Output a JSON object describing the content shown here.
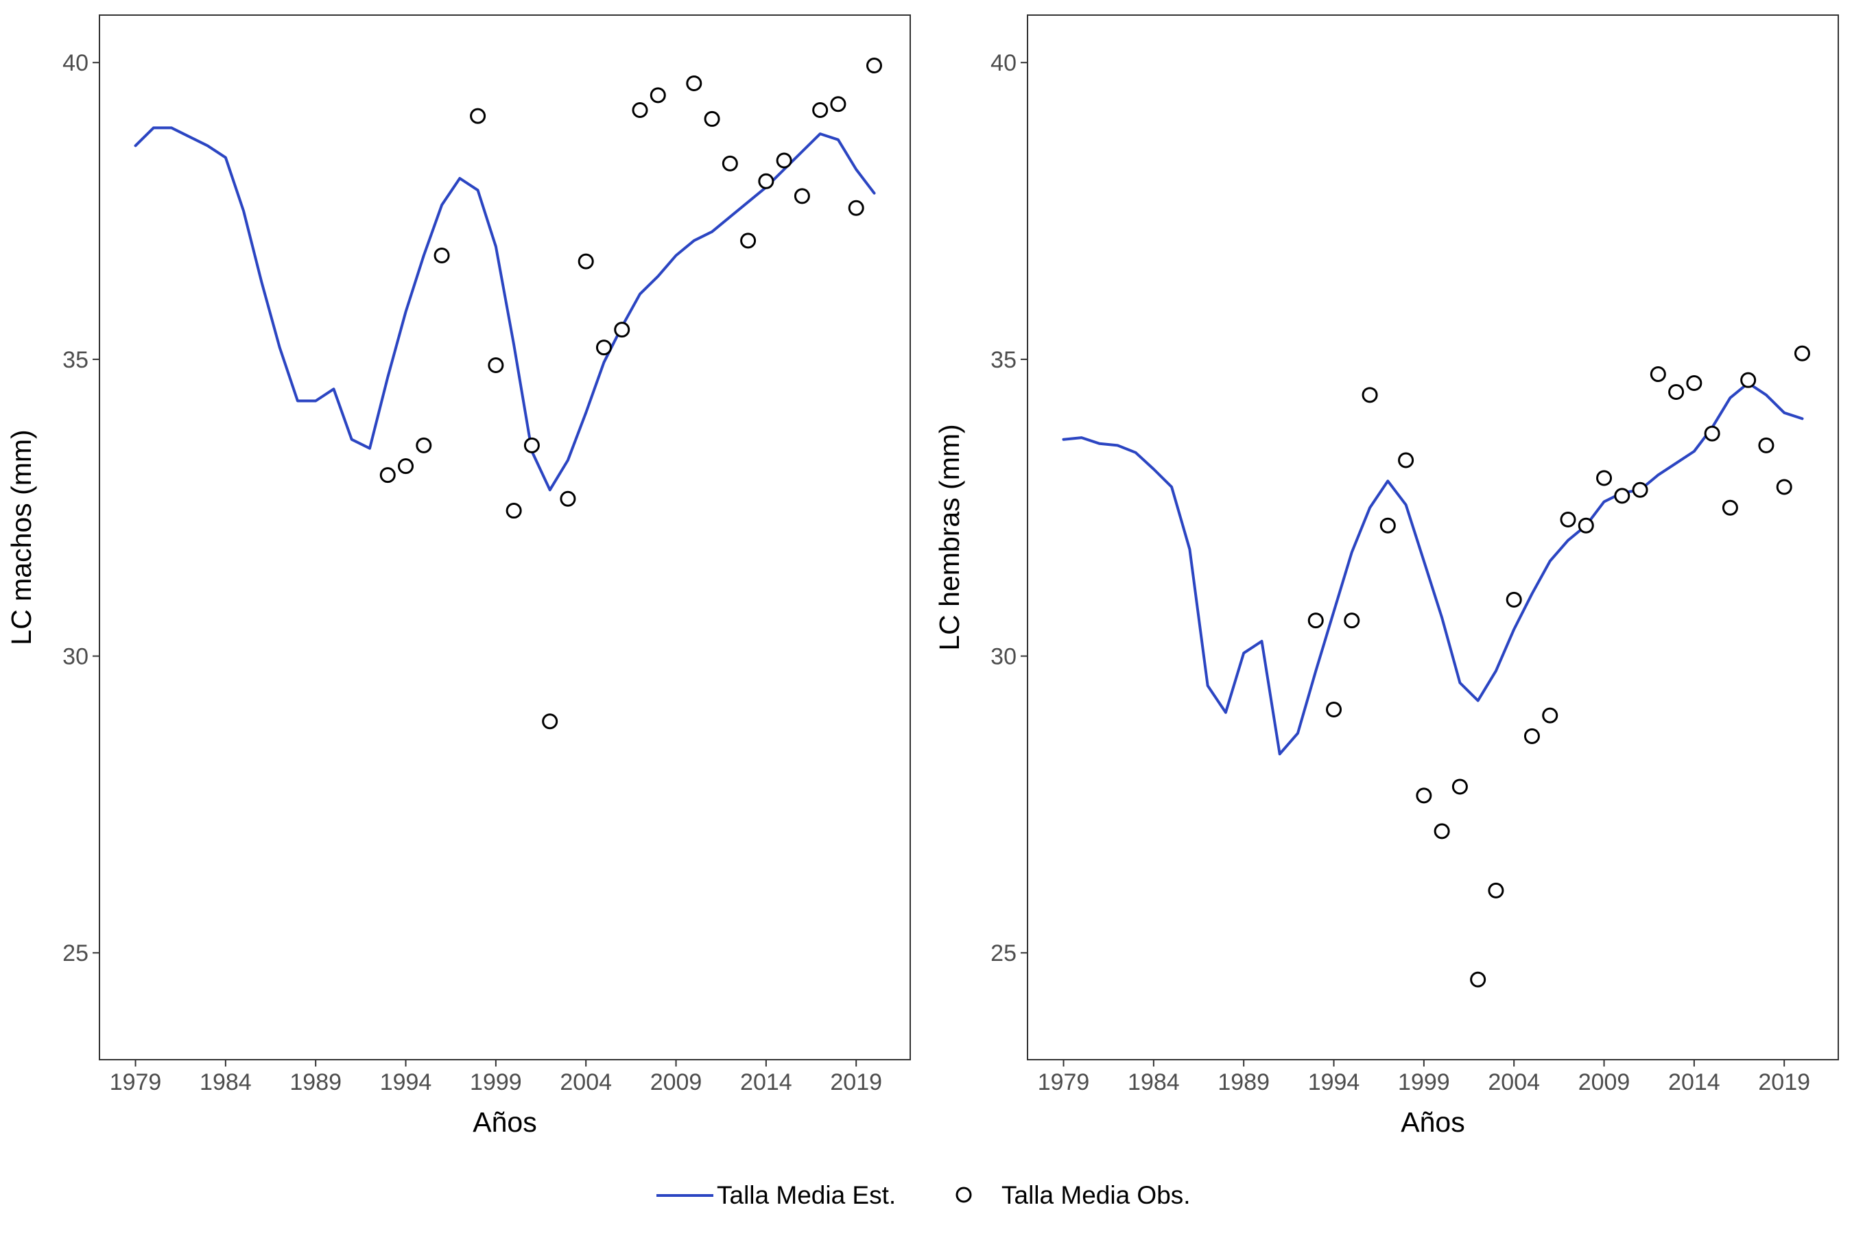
{
  "chart_data": [
    {
      "type": "line",
      "panel": "left",
      "xlabel": "Años",
      "ylabel": "LC machos (mm)",
      "xlim": [
        1977,
        2022
      ],
      "ylim": [
        23.2,
        40.8
      ],
      "xticks": [
        1979,
        1984,
        1989,
        1994,
        1999,
        2004,
        2009,
        2014,
        2019
      ],
      "yticks": [
        25,
        30,
        35,
        40
      ],
      "grid": false,
      "series": [
        {
          "name": "Talla Media Est.",
          "kind": "line",
          "color": "#2B45C2",
          "x": [
            1979,
            1980,
            1981,
            1982,
            1983,
            1984,
            1985,
            1986,
            1987,
            1988,
            1989,
            1990,
            1991,
            1992,
            1993,
            1994,
            1995,
            1996,
            1997,
            1998,
            1999,
            2000,
            2001,
            2002,
            2003,
            2004,
            2005,
            2006,
            2007,
            2008,
            2009,
            2010,
            2011,
            2012,
            2013,
            2014,
            2015,
            2016,
            2017,
            2018,
            2019,
            2020
          ],
          "y": [
            38.6,
            38.9,
            38.9,
            38.75,
            38.6,
            38.4,
            37.5,
            36.3,
            35.2,
            34.3,
            34.3,
            34.5,
            33.65,
            33.5,
            34.7,
            35.8,
            36.75,
            37.6,
            38.05,
            37.85,
            36.9,
            35.25,
            33.45,
            32.8,
            33.3,
            34.1,
            34.95,
            35.55,
            36.1,
            36.4,
            36.75,
            37.0,
            37.15,
            37.4,
            37.65,
            37.9,
            38.2,
            38.5,
            38.8,
            38.7,
            38.2,
            37.8
          ]
        },
        {
          "name": "Talla Media Obs.",
          "kind": "points",
          "color": "#000000",
          "x": [
            1993,
            1994,
            1995,
            1996,
            1998,
            1999,
            2000,
            2001,
            2002,
            2003,
            2004,
            2005,
            2006,
            2007,
            2008,
            2010,
            2011,
            2012,
            2013,
            2014,
            2015,
            2016,
            2017,
            2018,
            2019,
            2020
          ],
          "y": [
            33.05,
            33.2,
            33.55,
            36.75,
            39.1,
            34.9,
            32.45,
            33.55,
            28.9,
            32.65,
            36.65,
            35.2,
            35.5,
            39.2,
            39.45,
            39.65,
            39.05,
            38.3,
            37.0,
            38.0,
            38.35,
            37.75,
            39.2,
            39.3,
            37.55,
            39.95
          ]
        }
      ]
    },
    {
      "type": "line",
      "panel": "right",
      "xlabel": "Años",
      "ylabel": "LC hembras (mm)",
      "xlim": [
        1977,
        2022
      ],
      "ylim": [
        23.2,
        40.8
      ],
      "xticks": [
        1979,
        1984,
        1989,
        1994,
        1999,
        2004,
        2009,
        2014,
        2019
      ],
      "yticks": [
        25,
        30,
        35,
        40
      ],
      "grid": false,
      "series": [
        {
          "name": "Talla Media Est.",
          "kind": "line",
          "color": "#2B45C2",
          "x": [
            1979,
            1980,
            1981,
            1982,
            1983,
            1984,
            1985,
            1986,
            1987,
            1988,
            1989,
            1990,
            1991,
            1992,
            1993,
            1994,
            1995,
            1996,
            1997,
            1998,
            1999,
            2000,
            2001,
            2002,
            2003,
            2004,
            2005,
            2006,
            2007,
            2008,
            2009,
            2010,
            2011,
            2012,
            2013,
            2014,
            2015,
            2016,
            2017,
            2018,
            2019,
            2020
          ],
          "y": [
            33.65,
            33.68,
            33.58,
            33.55,
            33.43,
            33.15,
            32.85,
            31.8,
            29.5,
            29.05,
            30.05,
            30.25,
            28.35,
            28.7,
            29.75,
            30.75,
            31.75,
            32.5,
            32.95,
            32.55,
            31.6,
            30.65,
            29.55,
            29.25,
            29.75,
            30.45,
            31.05,
            31.6,
            31.95,
            32.2,
            32.6,
            32.75,
            32.8,
            33.05,
            33.25,
            33.45,
            33.85,
            34.35,
            34.6,
            34.4,
            34.1,
            34.0
          ]
        },
        {
          "name": "Talla Media Obs.",
          "kind": "points",
          "color": "#000000",
          "x": [
            1993,
            1994,
            1995,
            1996,
            1997,
            1998,
            1999,
            2000,
            2001,
            2002,
            2003,
            2004,
            2005,
            2006,
            2007,
            2008,
            2009,
            2010,
            2011,
            2012,
            2013,
            2014,
            2015,
            2016,
            2017,
            2018,
            2019,
            2020
          ],
          "y": [
            30.6,
            29.1,
            30.6,
            34.4,
            32.2,
            33.3,
            27.65,
            27.05,
            27.8,
            24.55,
            26.05,
            30.95,
            28.65,
            29.0,
            32.3,
            32.2,
            33.0,
            32.7,
            32.8,
            34.75,
            34.45,
            34.6,
            33.75,
            32.5,
            34.65,
            33.55,
            32.85,
            35.1
          ]
        }
      ]
    }
  ],
  "legend": {
    "position": "bottom",
    "items": [
      {
        "label": "Talla Media Est.",
        "symbol": "line",
        "color": "#2B45C2"
      },
      {
        "label": "Talla Media Obs.",
        "symbol": "circle",
        "color": "#000000"
      }
    ]
  }
}
